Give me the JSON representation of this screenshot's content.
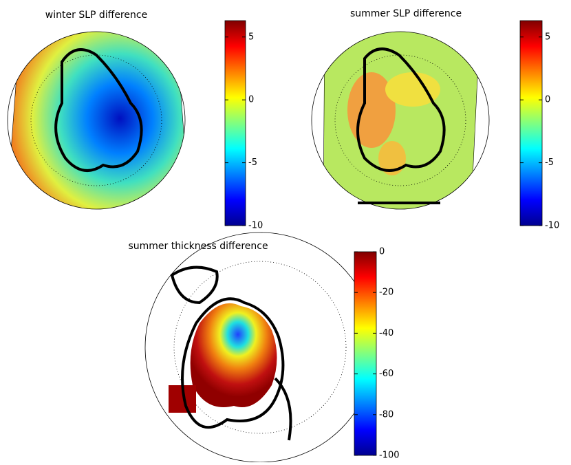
{
  "panels": [
    {
      "title": "winter SLP difference",
      "clim": [
        -10,
        6.3
      ],
      "ticks": [
        -10,
        -5,
        0,
        5
      ]
    },
    {
      "title": "summer SLP difference",
      "clim": [
        -10,
        6.3
      ],
      "ticks": [
        -10,
        -5,
        0,
        5
      ]
    },
    {
      "title": "summer thickness difference",
      "clim": [
        -100,
        0
      ],
      "ticks": [
        -100,
        -80,
        -60,
        -40,
        -20,
        0
      ]
    }
  ]
}
